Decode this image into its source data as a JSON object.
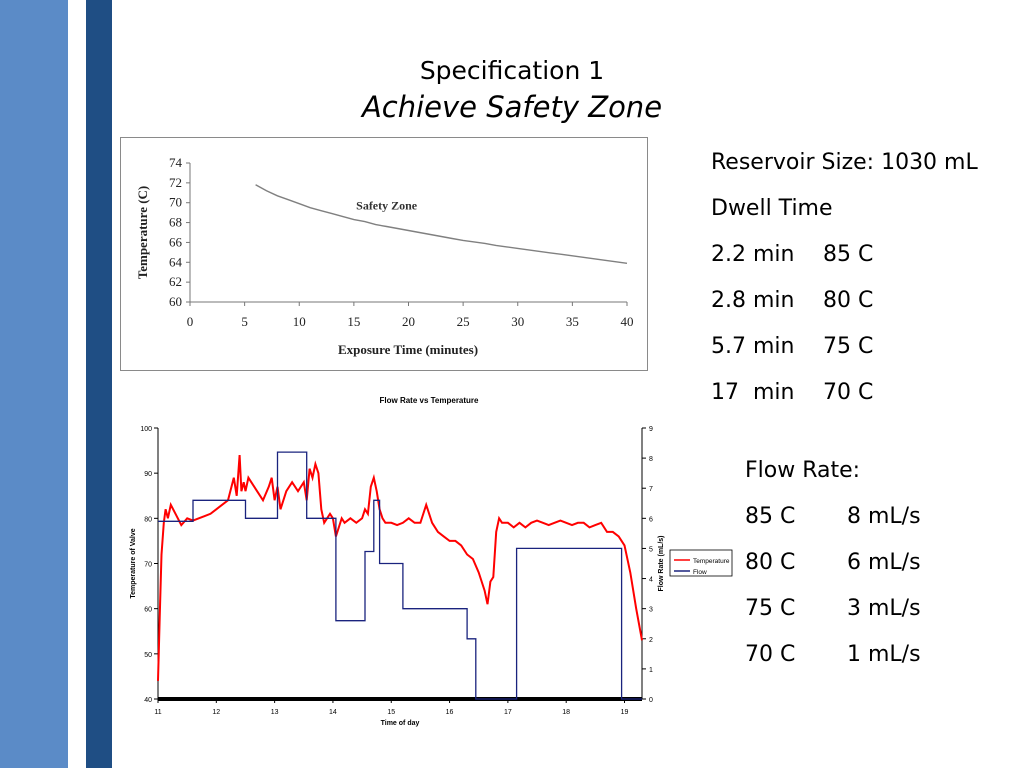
{
  "slide": {
    "title": "Specification 1",
    "subtitle": "Achieve Safety Zone",
    "colors": {
      "bar_light": "#5b8bc7",
      "bar_dark": "#1f4e84"
    }
  },
  "reservoir": {
    "size": "Reservoir Size: 1030 mL",
    "dwell_heading": "Dwell Time",
    "dwell": [
      {
        "time": "2.2 min",
        "temp": "85 C"
      },
      {
        "time": "2.8 min",
        "temp": "80 C"
      },
      {
        "time": "5.7 min",
        "temp": "75 C"
      },
      {
        "time": "17  min",
        "temp": "70 C"
      }
    ]
  },
  "flow_rate": {
    "heading": "Flow Rate:",
    "rows": [
      {
        "temp": "85 C",
        "rate": "8 mL/s"
      },
      {
        "temp": "80 C",
        "rate": "6 mL/s"
      },
      {
        "temp": "75 C",
        "rate": "3 mL/s"
      },
      {
        "temp": "70 C",
        "rate": "1 mL/s"
      }
    ]
  },
  "chart_data": [
    {
      "type": "line",
      "title": "",
      "xlabel": "Exposure Time (minutes)",
      "ylabel": "Temperature (C)",
      "xlim": [
        0,
        40
      ],
      "ylim": [
        60,
        74
      ],
      "xticks": [
        0,
        5,
        10,
        15,
        20,
        25,
        30,
        35,
        40
      ],
      "yticks": [
        60,
        62,
        64,
        66,
        68,
        70,
        72,
        74
      ],
      "annotation": "Safety Zone",
      "annotation_at": [
        18,
        69.3
      ],
      "grid": false,
      "line_color": "#808080",
      "x": [
        6,
        7,
        8,
        9,
        10,
        11,
        12,
        13,
        14,
        15,
        16,
        17,
        18,
        19,
        20,
        21,
        22,
        23,
        24,
        25,
        26,
        27,
        28,
        29,
        30,
        31,
        32,
        33,
        34,
        35,
        36,
        37,
        38,
        39,
        40
      ],
      "y": [
        71.8,
        71.2,
        70.7,
        70.3,
        69.9,
        69.5,
        69.2,
        68.9,
        68.6,
        68.3,
        68.1,
        67.8,
        67.6,
        67.4,
        67.2,
        67.0,
        66.8,
        66.6,
        66.4,
        66.2,
        66.05,
        65.9,
        65.7,
        65.55,
        65.4,
        65.25,
        65.1,
        64.95,
        64.8,
        64.65,
        64.5,
        64.35,
        64.2,
        64.05,
        63.9
      ]
    },
    {
      "type": "line",
      "title": "Flow Rate vs Temperature",
      "xlabel": "Time of day",
      "ylabel": "Temperature of Valve",
      "y2label": "Flow Rate (mL/s)",
      "xlim": [
        11,
        19.3
      ],
      "ylim": [
        40,
        100
      ],
      "y2lim": [
        0,
        9
      ],
      "xticks": [
        11,
        12,
        13,
        14,
        15,
        16,
        17,
        18,
        19
      ],
      "yticks": [
        40,
        50,
        60,
        70,
        80,
        90,
        100
      ],
      "y2ticks": [
        0,
        1,
        2,
        3,
        4,
        5,
        6,
        7,
        8,
        9
      ],
      "legend": "right",
      "series": [
        {
          "name": "Temperature",
          "axis": "left",
          "color": "#ff0000",
          "x": [
            11.0,
            11.03,
            11.06,
            11.1,
            11.13,
            11.17,
            11.22,
            11.3,
            11.4,
            11.5,
            11.6,
            11.7,
            11.8,
            11.9,
            12.0,
            12.1,
            12.2,
            12.3,
            12.35,
            12.4,
            12.43,
            12.47,
            12.5,
            12.55,
            12.6,
            12.7,
            12.8,
            12.9,
            12.95,
            13.0,
            13.05,
            13.1,
            13.2,
            13.3,
            13.4,
            13.5,
            13.55,
            13.6,
            13.65,
            13.7,
            13.75,
            13.8,
            13.85,
            13.9,
            13.95,
            14.0,
            14.05,
            14.1,
            14.15,
            14.2,
            14.3,
            14.4,
            14.5,
            14.55,
            14.6,
            14.65,
            14.7,
            14.75,
            14.8,
            14.85,
            14.9,
            15.0,
            15.1,
            15.2,
            15.3,
            15.4,
            15.5,
            15.6,
            15.7,
            15.8,
            15.9,
            16.0,
            16.1,
            16.2,
            16.3,
            16.4,
            16.5,
            16.6,
            16.65,
            16.7,
            16.75,
            16.8,
            16.85,
            16.9,
            17.0,
            17.1,
            17.2,
            17.3,
            17.4,
            17.5,
            17.6,
            17.7,
            17.8,
            17.9,
            18.0,
            18.1,
            18.2,
            18.3,
            18.4,
            18.5,
            18.6,
            18.7,
            18.8,
            18.9,
            19.0,
            19.1,
            19.2,
            19.3
          ],
          "y": [
            44,
            58,
            72,
            79,
            82,
            80,
            83,
            81,
            78.5,
            80,
            79.5,
            80,
            80.5,
            81,
            82,
            83,
            84,
            89,
            85,
            94,
            86,
            88,
            86,
            89,
            88,
            86,
            84,
            87,
            89,
            84,
            87,
            82,
            86,
            88,
            86,
            88,
            84,
            91,
            89,
            92,
            90,
            82,
            79,
            80,
            81,
            80,
            76,
            78,
            80,
            79,
            80,
            79,
            80,
            82,
            81,
            87,
            89,
            86,
            82,
            80,
            79,
            79,
            78.5,
            79,
            80,
            79,
            79,
            83,
            79,
            77,
            76,
            75,
            75,
            74,
            72,
            71,
            68,
            64,
            61,
            66,
            67,
            77,
            80,
            79,
            79,
            78,
            79,
            78,
            79,
            79.5,
            79,
            78.5,
            79,
            79.5,
            79,
            78.5,
            79,
            79,
            78,
            78.5,
            79,
            77,
            77,
            76,
            74,
            68,
            60,
            53
          ]
        },
        {
          "name": "Flow",
          "axis": "right",
          "color": "#1a237e",
          "x": [
            11.0,
            11.6,
            11.6,
            12.5,
            12.5,
            13.05,
            13.05,
            13.55,
            13.55,
            14.05,
            14.05,
            14.55,
            14.55,
            14.7,
            14.7,
            14.8,
            14.8,
            15.2,
            15.2,
            15.5,
            15.5,
            16.3,
            16.3,
            16.45,
            16.45,
            17.15,
            17.15,
            18.95,
            18.95,
            19.3
          ],
          "y": [
            5.9,
            5.9,
            6.6,
            6.6,
            6.0,
            6.0,
            8.2,
            8.2,
            6.0,
            6.0,
            2.6,
            2.6,
            4.9,
            4.9,
            6.6,
            6.6,
            4.5,
            4.5,
            3.0,
            3.0,
            3.0,
            3.0,
            2.0,
            2.0,
            0,
            0,
            5.0,
            5.0,
            0,
            0
          ]
        }
      ]
    }
  ]
}
